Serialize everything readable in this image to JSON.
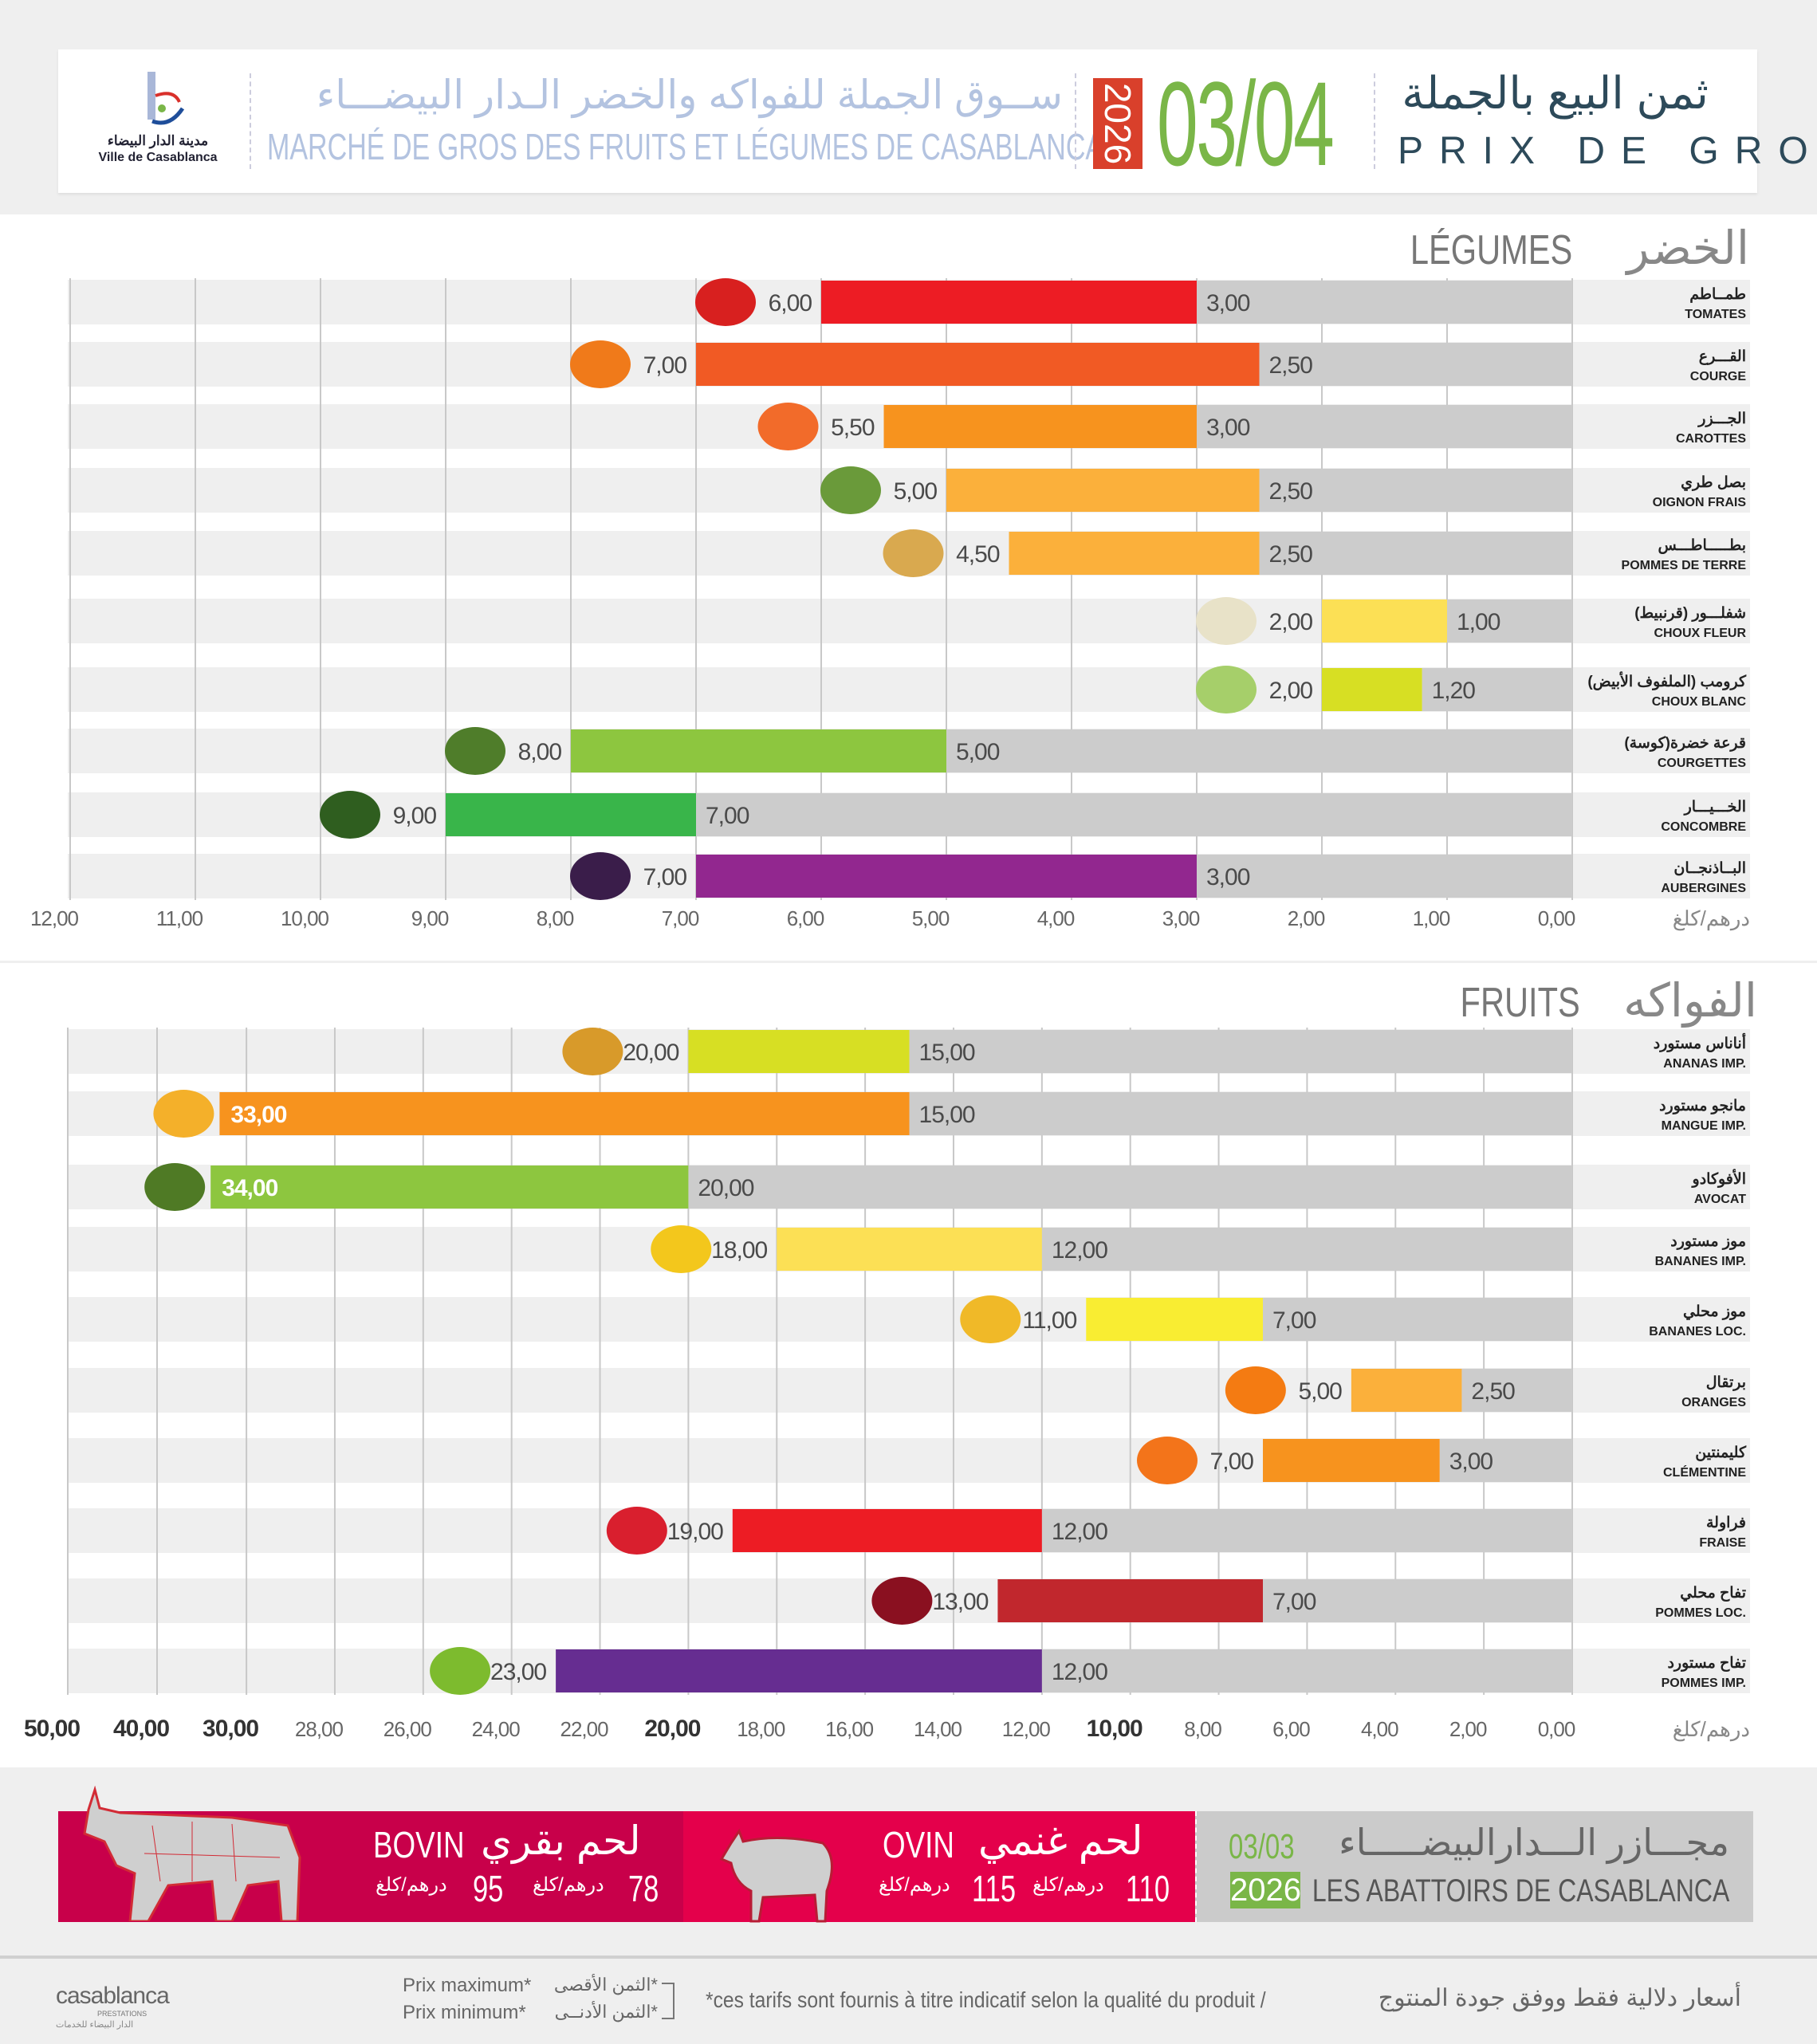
{
  "header": {
    "logo_ar": "مدينة الدار البيضاء",
    "logo_fr": "Ville de Casablanca",
    "title_ar": "ســوق الجملة للفواكه والخضر الـدار البيضـــاء",
    "title_fr": "MARCHÉ DE GROS DES FRUITS ET LÉGUMES DE CASABLANCA",
    "year": "2026",
    "date": "03/04",
    "prix_ar": "ثمن البيع بالجملة",
    "prix_fr": "PRIX DE GROS"
  },
  "colors": {
    "gray_bar": "#cccccc",
    "date_green": "#7ab648",
    "year_red": "#d9402b",
    "bovin": "#c8004a",
    "ovin": "#e4004b"
  },
  "chart_data": [
    {
      "type": "bar",
      "orientation": "horizontal-range",
      "title_fr": "LÉGUMES",
      "title_ar": "الخضر",
      "unit": "درهم/كلغ",
      "xlim": [
        0,
        12
      ],
      "x_reversed": true,
      "grid": true,
      "ticks": [
        12,
        11,
        10,
        9,
        8,
        7,
        6,
        5,
        4,
        3,
        2,
        1,
        0
      ],
      "tick_labels": [
        "12,00",
        "11,00",
        "10,00",
        "9,00",
        "8,00",
        "7,00",
        "6,00",
        "5,00",
        "4,00",
        "3,00",
        "2,00",
        "1,00",
        "0,00"
      ],
      "items": [
        {
          "ar": "طمــاطم",
          "fr": "TOMATES",
          "min": 3.0,
          "max": 6.0,
          "min_label": "3,00",
          "max_label": "6,00",
          "color": "#ed1c24",
          "icon": "tomato-icon",
          "icon_color": "#d8201f"
        },
        {
          "ar": "القـــرع",
          "fr": "COURGE",
          "min": 2.5,
          "max": 7.0,
          "min_label": "2,50",
          "max_label": "7,00",
          "color": "#f15a24",
          "icon": "pumpkin-icon",
          "icon_color": "#f07a1a"
        },
        {
          "ar": "الجـــزر",
          "fr": "CAROTTES",
          "min": 3.0,
          "max": 5.5,
          "min_label": "3,00",
          "max_label": "5,50",
          "color": "#f7931e",
          "icon": "carrot-icon",
          "icon_color": "#f26b2a"
        },
        {
          "ar": "بصل طري",
          "fr": "OIGNON FRAIS",
          "min": 2.5,
          "max": 5.0,
          "min_label": "2,50",
          "max_label": "5,00",
          "color": "#fbb03b",
          "icon": "green-onion-icon",
          "icon_color": "#6a9a3a"
        },
        {
          "ar": "بطـــــاطـــس",
          "fr": "POMMES DE TERRE",
          "min": 2.5,
          "max": 4.5,
          "min_label": "2,50",
          "max_label": "4,50",
          "color": "#fbb03b",
          "icon": "potato-icon",
          "icon_color": "#d9a94f"
        },
        {
          "ar": "شفلـــور (قرنبيط)",
          "fr": "CHOUX FLEUR",
          "min": 1.0,
          "max": 2.0,
          "min_label": "1,00",
          "max_label": "2,00",
          "color": "#fce055",
          "icon": "cauliflower-icon",
          "icon_color": "#e8e2c8"
        },
        {
          "ar": "كرومب (الملفوف الأبيض)",
          "fr": "CHOUX BLANC",
          "min": 1.2,
          "max": 2.0,
          "min_label": "1,20",
          "max_label": "2,00",
          "color": "#d7df23",
          "icon": "cabbage-icon",
          "icon_color": "#a6cf6a"
        },
        {
          "ar": "قرعة خضرة(كوسة)",
          "fr": "COURGETTES",
          "min": 5.0,
          "max": 8.0,
          "min_label": "5,00",
          "max_label": "8,00",
          "color": "#8dc63f",
          "icon": "zucchini-icon",
          "icon_color": "#4f7d2a"
        },
        {
          "ar": "الخـــيـــار",
          "fr": "CONCOMBRE",
          "min": 7.0,
          "max": 9.0,
          "min_label": "7,00",
          "max_label": "9,00",
          "color": "#39b54a",
          "icon": "cucumber-icon",
          "icon_color": "#2f5e1f"
        },
        {
          "ar": "البــاذنجــان",
          "fr": "AUBERGINES",
          "min": 3.0,
          "max": 7.0,
          "min_label": "3,00",
          "max_label": "7,00",
          "color": "#92278f",
          "icon": "eggplant-icon",
          "icon_color": "#3a1d4a"
        }
      ]
    },
    {
      "type": "bar",
      "orientation": "horizontal-range",
      "title_fr": "FRUITS",
      "title_ar": "الفواكه",
      "unit": "درهم/كلغ",
      "xlim": [
        0,
        50
      ],
      "x_reversed": true,
      "axis_break": "compressed scale above 30",
      "grid": true,
      "ticks": [
        50,
        40,
        30,
        28,
        26,
        24,
        22,
        20,
        18,
        16,
        14,
        12,
        10,
        8,
        6,
        4,
        2,
        0
      ],
      "tick_labels": [
        "50,00",
        "40,00",
        "30,00",
        "28,00",
        "26,00",
        "24,00",
        "22,00",
        "20,00",
        "18,00",
        "16,00",
        "14,00",
        "12,00",
        "10,00",
        "8,00",
        "6,00",
        "4,00",
        "2,00",
        "0,00"
      ],
      "bold_ticks": [
        50,
        40,
        30,
        20,
        10
      ],
      "items": [
        {
          "ar": "أناناس مستورد",
          "fr": "ANANAS IMP.",
          "min": 15,
          "max": 20,
          "min_label": "15,00",
          "max_label": "20,00",
          "color": "#d7df23",
          "icon": "pineapple-icon",
          "icon_color": "#d89a2a"
        },
        {
          "ar": "مانجو مستورد",
          "fr": "MANGUE IMP.",
          "min": 15,
          "max": 33,
          "min_label": "15,00",
          "max_label": "33,00",
          "color": "#f7931e",
          "icon": "mango-icon",
          "icon_color": "#f4b02a",
          "label_inside": true
        },
        {
          "ar": "الأفوكادو",
          "fr": "AVOCAT",
          "min": 20,
          "max": 34,
          "min_label": "20,00",
          "max_label": "34,00",
          "color": "#8dc63f",
          "icon": "avocado-icon",
          "icon_color": "#4f7a25",
          "label_inside": true
        },
        {
          "ar": "موز مستورد",
          "fr": "BANANES IMP.",
          "min": 12,
          "max": 18,
          "min_label": "12,00",
          "max_label": "18,00",
          "color": "#fce055",
          "icon": "bananas-icon",
          "icon_color": "#f3c71c"
        },
        {
          "ar": "موز محلي",
          "fr": "BANANES LOC.",
          "min": 7,
          "max": 11,
          "min_label": "7,00",
          "max_label": "11,00",
          "color": "#f9ed32",
          "icon": "banana-icon",
          "icon_color": "#f0b928"
        },
        {
          "ar": "برتقال",
          "fr": "ORANGES",
          "min": 2.5,
          "max": 5,
          "min_label": "2,50",
          "max_label": "5,00",
          "color": "#fbb03b",
          "icon": "orange-icon",
          "icon_color": "#f47b12"
        },
        {
          "ar": "كليمنتين",
          "fr": "CLÉMENTINE",
          "min": 3,
          "max": 7,
          "min_label": "3,00",
          "max_label": "7,00",
          "color": "#f7931e",
          "icon": "clementine-icon",
          "icon_color": "#f3741a"
        },
        {
          "ar": "فراولة",
          "fr": "FRAISE",
          "min": 12,
          "max": 19,
          "min_label": "12,00",
          "max_label": "19,00",
          "color": "#ed1c24",
          "icon": "strawberry-icon",
          "icon_color": "#d91f2e"
        },
        {
          "ar": "تفاح محلي",
          "fr": "POMMES LOC.",
          "min": 7,
          "max": 13,
          "min_label": "7,00",
          "max_label": "13,00",
          "color": "#c1272d",
          "icon": "red-apple-icon",
          "icon_color": "#8a1020"
        },
        {
          "ar": "تفاح مستورد",
          "fr": "POMMES IMP.",
          "min": 12,
          "max": 23,
          "min_label": "12,00",
          "max_label": "23,00",
          "color": "#662d91",
          "icon": "apples-icon",
          "icon_color": "#7dbb2e"
        }
      ]
    }
  ],
  "abattoir": {
    "bovin_fr": "BOVIN",
    "bovin_ar": "لحم بقري",
    "bovin_min": "78",
    "bovin_max": "95",
    "ovin_fr": "OVIN",
    "ovin_ar": "لحم غنمي",
    "ovin_min": "110",
    "ovin_max": "115",
    "unit": "درهم/كلغ",
    "date": "03/03",
    "year": "2026",
    "title_ar": "مجـــازر الـــدارالبيضـــــاء",
    "title_fr": "LES ABATTOIRS DE CASABLANCA"
  },
  "footer": {
    "brand": "casablanca",
    "brand_sub": "PRESTATIONS",
    "brand_ar": "الدار البيضاء للخدمات",
    "prix_max_fr": "Prix maximum*",
    "prix_min_fr": "Prix minimum*",
    "prix_max_ar": "*الثمن الأقصى",
    "prix_min_ar": "*الثمن الأدنــى",
    "disclaimer_fr": "*ces tarifs sont fournis à titre indicatif selon la qualité du produit /",
    "disclaimer_ar": "أسعار دلالية فقط ووفق جودة المنتوج"
  }
}
